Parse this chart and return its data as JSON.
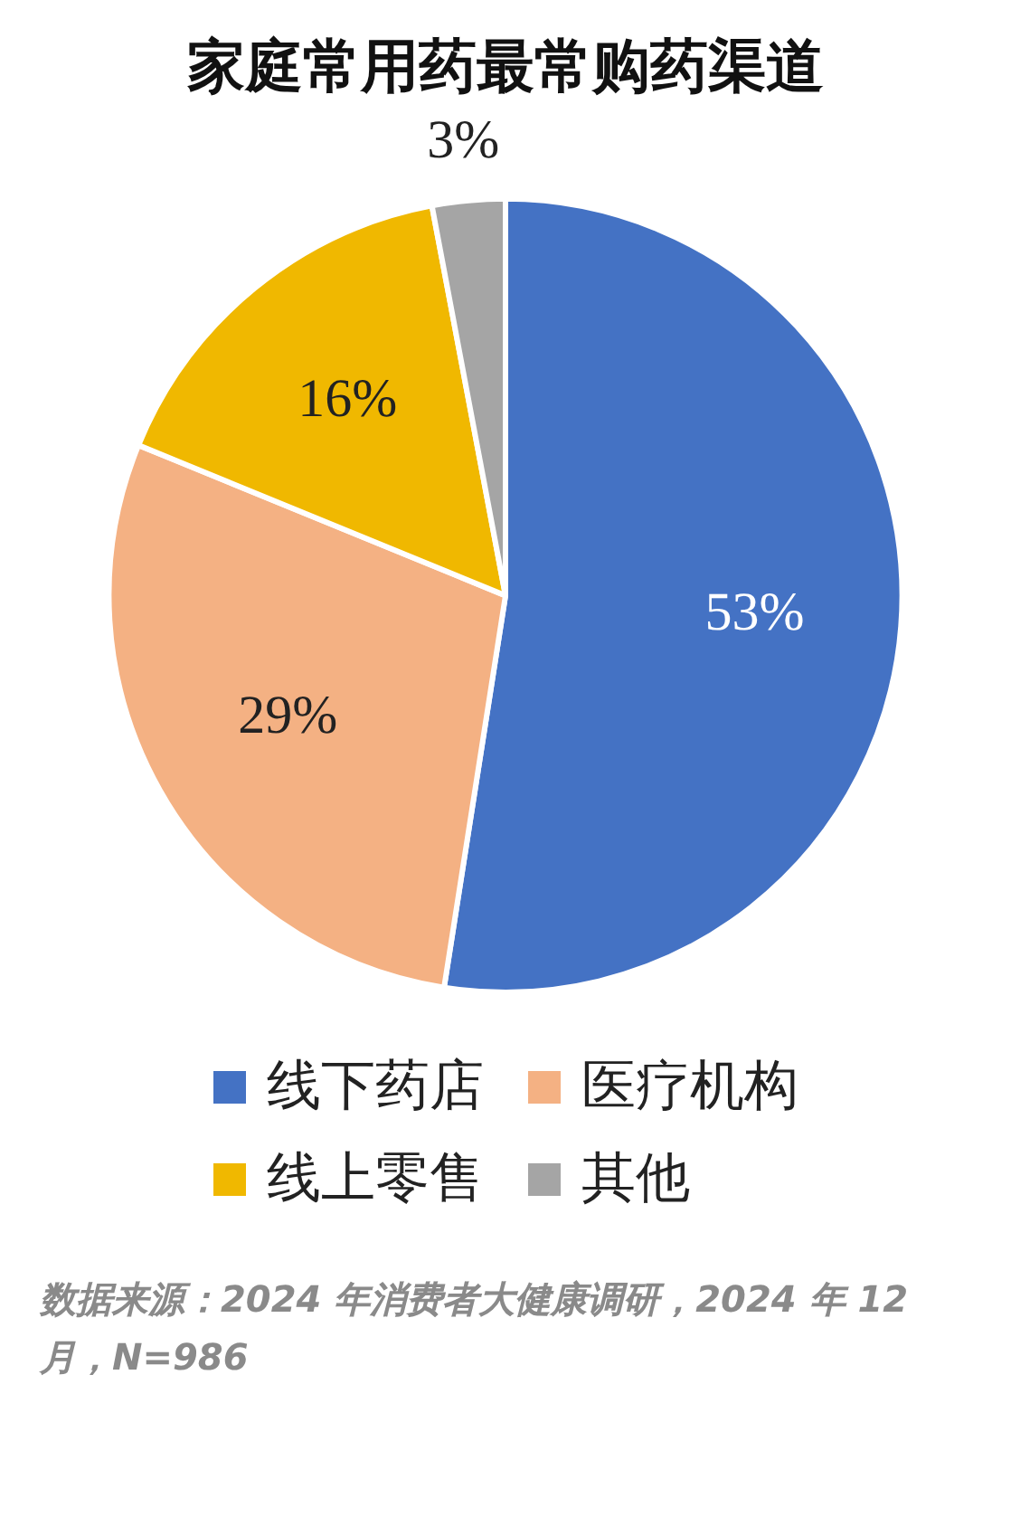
{
  "chart_data": {
    "type": "pie",
    "title": "家庭常用药最常购药渠道",
    "categories": [
      "线下药店",
      "医疗机构",
      "线上零售",
      "其他"
    ],
    "values": [
      53,
      29,
      16,
      3
    ],
    "colors": [
      "#4472c4",
      "#f4b183",
      "#f0b800",
      "#a5a5a5"
    ],
    "value_labels": [
      "53%",
      "29%",
      "16%",
      "3%"
    ],
    "legend": "bottom",
    "annotations": [
      "数据来源：2024 年消费者大健康调研，2024 年 12 月，N=986"
    ]
  }
}
